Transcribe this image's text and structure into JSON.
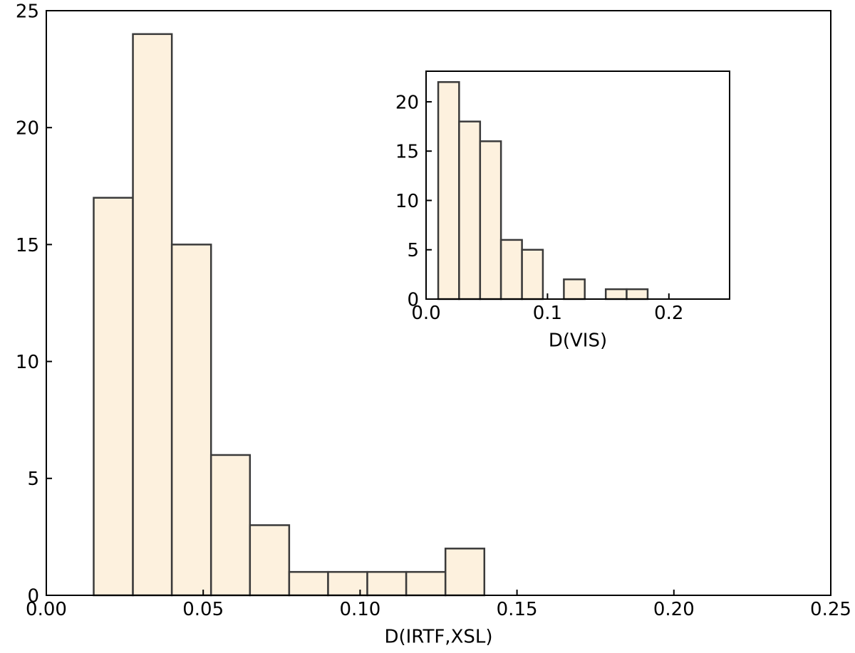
{
  "chart_data": [
    {
      "type": "bar",
      "subtype": "histogram",
      "xlabel": "D(IRTF,XSL)",
      "ylabel": "",
      "xlim": [
        0.0,
        0.25
      ],
      "ylim": [
        0,
        25
      ],
      "xticks": [
        0.0,
        0.05,
        0.1,
        0.15,
        0.2,
        0.25
      ],
      "xtick_labels": [
        "0.00",
        "0.05",
        "0.10",
        "0.15",
        "0.20",
        "0.25"
      ],
      "yticks": [
        0,
        5,
        10,
        15,
        20,
        25
      ],
      "ytick_labels": [
        "0",
        "5",
        "10",
        "15",
        "20",
        "25"
      ],
      "bins": [
        {
          "x0": 0.0151,
          "x1": 0.0276,
          "value": 17
        },
        {
          "x0": 0.0276,
          "x1": 0.04,
          "value": 24
        },
        {
          "x0": 0.04,
          "x1": 0.0525,
          "value": 15
        },
        {
          "x0": 0.0525,
          "x1": 0.0649,
          "value": 6
        },
        {
          "x0": 0.0649,
          "x1": 0.0774,
          "value": 3
        },
        {
          "x0": 0.0774,
          "x1": 0.0898,
          "value": 1
        },
        {
          "x0": 0.0898,
          "x1": 0.1023,
          "value": 1
        },
        {
          "x0": 0.1023,
          "x1": 0.1147,
          "value": 1
        },
        {
          "x0": 0.1147,
          "x1": 0.1272,
          "value": 1
        },
        {
          "x0": 0.1272,
          "x1": 0.1396,
          "value": 2
        }
      ],
      "grid": false,
      "bar_fill": "#fdf1de",
      "bar_edge": "#3a3a3a"
    },
    {
      "type": "bar",
      "subtype": "histogram",
      "position": "inset top-right",
      "xlabel": "D(VIS)",
      "ylabel": "",
      "xlim": [
        0.0,
        0.25
      ],
      "ylim": [
        0,
        23.1
      ],
      "xticks": [
        0.0,
        0.1,
        0.2
      ],
      "xtick_labels": [
        "0.0",
        "0.1",
        "0.2"
      ],
      "yticks": [
        0,
        5,
        10,
        15,
        20
      ],
      "ytick_labels": [
        "0",
        "5",
        "10",
        "15",
        "20"
      ],
      "bins": [
        {
          "x0": 0.01,
          "x1": 0.0272,
          "value": 22
        },
        {
          "x0": 0.0272,
          "x1": 0.0445,
          "value": 18
        },
        {
          "x0": 0.0445,
          "x1": 0.0617,
          "value": 16
        },
        {
          "x0": 0.0617,
          "x1": 0.079,
          "value": 6
        },
        {
          "x0": 0.079,
          "x1": 0.0962,
          "value": 5
        },
        {
          "x0": 0.0962,
          "x1": 0.1135,
          "value": 0
        },
        {
          "x0": 0.1135,
          "x1": 0.1307,
          "value": 2
        },
        {
          "x0": 0.1307,
          "x1": 0.148,
          "value": 0
        },
        {
          "x0": 0.148,
          "x1": 0.1652,
          "value": 1
        },
        {
          "x0": 0.1652,
          "x1": 0.1825,
          "value": 1
        }
      ],
      "grid": false,
      "bar_fill": "#fdf1de",
      "bar_edge": "#3a3a3a"
    }
  ]
}
